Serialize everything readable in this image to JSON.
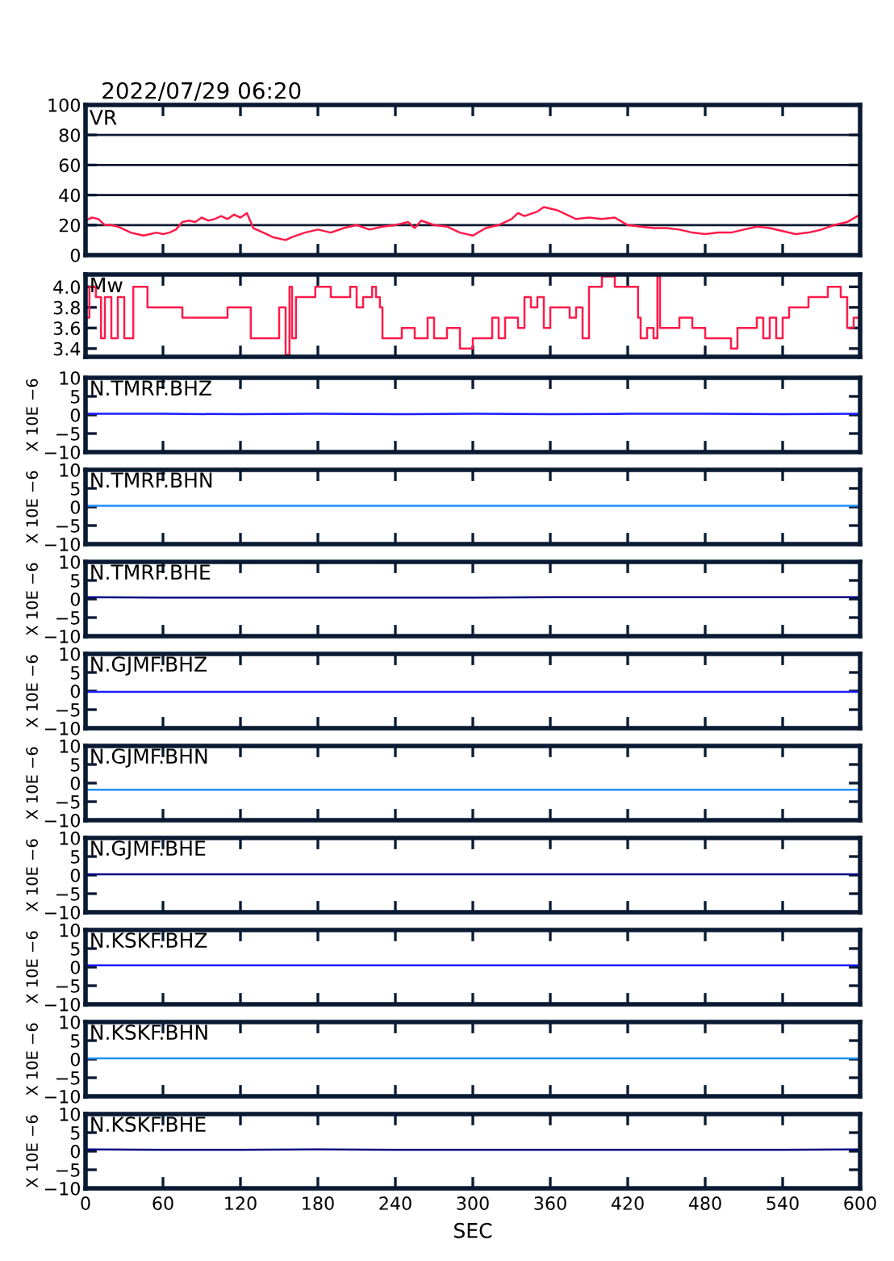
{
  "chart_data": [
    {
      "type": "line",
      "annotations": [
        "2022/07/29 06:20"
      ],
      "title": "VR",
      "x": [
        0,
        5,
        10,
        15,
        20,
        25,
        30,
        35,
        40,
        45,
        50,
        55,
        60,
        65,
        70,
        75,
        80,
        85,
        90,
        95,
        100,
        105,
        110,
        115,
        120,
        125,
        128,
        130,
        135,
        140,
        145,
        155,
        160,
        170,
        180,
        190,
        200,
        210,
        220,
        230,
        240,
        250,
        255,
        260,
        270,
        280,
        290,
        300,
        310,
        320,
        330,
        335,
        340,
        350,
        355,
        365,
        370,
        380,
        390,
        400,
        410,
        420,
        430,
        440,
        450,
        460,
        470,
        480,
        490,
        500,
        510,
        520,
        530,
        540,
        550,
        560,
        570,
        580,
        590,
        600
      ],
      "series": [
        {
          "color": "#ff1a4a",
          "values": [
            23,
            25,
            24,
            20,
            20,
            19,
            17,
            15,
            14,
            13,
            14,
            15,
            14,
            15,
            17,
            22,
            23,
            22,
            25,
            23,
            24,
            26,
            24,
            27,
            25,
            28,
            22,
            18,
            16,
            14,
            12,
            10,
            12,
            15,
            17,
            15,
            18,
            20,
            17,
            19,
            20,
            22,
            18,
            23,
            20,
            19,
            15,
            13,
            18,
            20,
            24,
            28,
            26,
            29,
            32,
            30,
            28,
            24,
            25,
            24,
            25,
            20,
            19,
            18,
            18,
            17,
            15,
            14,
            15,
            15,
            17,
            19,
            18,
            16,
            14,
            15,
            17,
            20,
            22,
            27
          ]
        }
      ],
      "xlim": [
        0,
        600
      ],
      "xticks": [
        0,
        60,
        120,
        180,
        240,
        300,
        360,
        420,
        480,
        540,
        600
      ],
      "ylim": [
        0,
        100
      ],
      "yticks": [
        0,
        20,
        40,
        60,
        80,
        100
      ],
      "grid": "y",
      "tick_labels": "y"
    },
    {
      "type": "step",
      "title": "Mw",
      "x": [
        0,
        3,
        8,
        12,
        15,
        20,
        25,
        30,
        35,
        37,
        45,
        48,
        55,
        60,
        75,
        90,
        110,
        125,
        128,
        150,
        155,
        158,
        160,
        163,
        170,
        178,
        185,
        190,
        200,
        205,
        210,
        215,
        222,
        225,
        228,
        230,
        240,
        245,
        255,
        265,
        270,
        280,
        290,
        300,
        310,
        315,
        320,
        325,
        335,
        340,
        345,
        350,
        355,
        360,
        370,
        375,
        380,
        385,
        390,
        400,
        405,
        410,
        420,
        425,
        428,
        430,
        435,
        440,
        443,
        445,
        455,
        460,
        470,
        480,
        495,
        500,
        505,
        515,
        520,
        525,
        530,
        535,
        540,
        545,
        550,
        560,
        570,
        575,
        580,
        585,
        590,
        595,
        600
      ],
      "series": [
        {
          "color": "#ff1a4a",
          "values": [
            3.7,
            4.0,
            3.9,
            3.5,
            3.9,
            3.5,
            3.9,
            3.5,
            3.5,
            4.0,
            4.0,
            3.8,
            3.8,
            3.8,
            3.7,
            3.7,
            3.8,
            3.8,
            3.5,
            3.8,
            3.34,
            4.0,
            3.5,
            3.9,
            3.9,
            4.0,
            4.0,
            3.9,
            3.9,
            4.0,
            3.8,
            3.9,
            4.0,
            3.9,
            3.8,
            3.5,
            3.5,
            3.6,
            3.5,
            3.7,
            3.5,
            3.6,
            3.4,
            3.5,
            3.5,
            3.7,
            3.5,
            3.7,
            3.6,
            3.9,
            3.8,
            3.9,
            3.6,
            3.8,
            3.8,
            3.7,
            3.8,
            3.5,
            4.0,
            4.1,
            4.1,
            4.0,
            4.0,
            4.0,
            3.7,
            3.5,
            3.6,
            3.5,
            4.1,
            3.6,
            3.6,
            3.7,
            3.6,
            3.5,
            3.5,
            3.4,
            3.6,
            3.6,
            3.7,
            3.5,
            3.7,
            3.5,
            3.7,
            3.8,
            3.8,
            3.9,
            3.9,
            4.0,
            4.0,
            3.9,
            3.6,
            3.7,
            3.6
          ]
        }
      ],
      "xlim": [
        0,
        600
      ],
      "xticks": [
        0,
        60,
        120,
        180,
        240,
        300,
        360,
        420,
        480,
        540,
        600
      ],
      "ylim": [
        3.32,
        4.12
      ],
      "yticks": [
        3.4,
        3.6,
        3.8,
        {
          "value": 4.0,
          "label": "4.0"
        }
      ],
      "tick_labels": "y"
    },
    {
      "type": "line",
      "title": "N.TMRF.BHZ",
      "ylabel": "X 10E −6",
      "x": [
        0,
        60,
        120,
        180,
        240,
        300,
        360,
        420,
        480,
        540,
        600
      ],
      "series": [
        {
          "color": "#1a1aff",
          "values": [
            0.3,
            0.3,
            0.2,
            0.3,
            0.2,
            0.3,
            0.2,
            0.3,
            0.3,
            0.2,
            0.3
          ]
        }
      ],
      "xlim": [
        0,
        600
      ],
      "xticks": [
        0,
        60,
        120,
        180,
        240,
        300,
        360,
        420,
        480,
        540,
        600
      ],
      "ylim": [
        -10,
        10
      ],
      "yticks": [
        {
          "value": -10,
          "label": "−10"
        },
        {
          "value": -5,
          "label": "−5"
        },
        0,
        5,
        10
      ],
      "tick_labels": "y"
    },
    {
      "type": "line",
      "title": "N.TMRF.BHN",
      "ylabel": "X 10E −6",
      "x": [
        0,
        60,
        120,
        180,
        240,
        300,
        360,
        420,
        480,
        540,
        600
      ],
      "series": [
        {
          "color": "#1e8fff",
          "values": [
            0.3,
            0.3,
            0.3,
            0.3,
            0.3,
            0.3,
            0.3,
            0.3,
            0.3,
            0.3,
            0.3
          ]
        }
      ],
      "xlim": [
        0,
        600
      ],
      "xticks": [
        0,
        60,
        120,
        180,
        240,
        300,
        360,
        420,
        480,
        540,
        600
      ],
      "ylim": [
        -10,
        10
      ],
      "yticks": [
        {
          "value": -10,
          "label": "−10"
        },
        {
          "value": -5,
          "label": "−5"
        },
        0,
        5,
        10
      ],
      "tick_labels": "y"
    },
    {
      "type": "line",
      "title": "N.TMRF.BHE",
      "ylabel": "X 10E −6",
      "x": [
        0,
        60,
        120,
        180,
        240,
        300,
        360,
        420,
        480,
        540,
        600
      ],
      "series": [
        {
          "color": "#000080",
          "values": [
            0.5,
            0.4,
            0.4,
            0.4,
            0.4,
            0.4,
            0.5,
            0.5,
            0.5,
            0.5,
            0.5
          ]
        }
      ],
      "xlim": [
        0,
        600
      ],
      "xticks": [
        0,
        60,
        120,
        180,
        240,
        300,
        360,
        420,
        480,
        540,
        600
      ],
      "ylim": [
        -10,
        10
      ],
      "yticks": [
        {
          "value": -10,
          "label": "−10"
        },
        {
          "value": -5,
          "label": "−5"
        },
        0,
        5,
        10
      ],
      "tick_labels": "y"
    },
    {
      "type": "line",
      "title": "N.GJMF.BHZ",
      "ylabel": "X 10E −6",
      "x": [
        0,
        60,
        120,
        180,
        240,
        300,
        360,
        420,
        480,
        540,
        600
      ],
      "series": [
        {
          "color": "#1a1aff",
          "values": [
            -0.2,
            -0.2,
            -0.2,
            -0.2,
            -0.2,
            -0.2,
            -0.2,
            -0.2,
            -0.2,
            -0.2,
            -0.2
          ]
        }
      ],
      "xlim": [
        0,
        600
      ],
      "xticks": [
        0,
        60,
        120,
        180,
        240,
        300,
        360,
        420,
        480,
        540,
        600
      ],
      "ylim": [
        -10,
        10
      ],
      "yticks": [
        {
          "value": -10,
          "label": "−10"
        },
        {
          "value": -5,
          "label": "−5"
        },
        0,
        5,
        10
      ],
      "tick_labels": "y"
    },
    {
      "type": "line",
      "title": "N.GJMF.BHN",
      "ylabel": "X 10E −6",
      "x": [
        0,
        60,
        120,
        180,
        240,
        300,
        360,
        420,
        480,
        540,
        600
      ],
      "series": [
        {
          "color": "#1e8fff",
          "values": [
            -1.8,
            -1.8,
            -1.8,
            -1.8,
            -1.8,
            -1.8,
            -1.8,
            -1.8,
            -1.8,
            -1.8,
            -1.8
          ]
        }
      ],
      "xlim": [
        0,
        600
      ],
      "xticks": [
        0,
        60,
        120,
        180,
        240,
        300,
        360,
        420,
        480,
        540,
        600
      ],
      "ylim": [
        -10,
        10
      ],
      "yticks": [
        {
          "value": -10,
          "label": "−10"
        },
        {
          "value": -5,
          "label": "−5"
        },
        0,
        5,
        10
      ],
      "tick_labels": "y"
    },
    {
      "type": "line",
      "title": "N.GJMF.BHE",
      "ylabel": "X 10E −6",
      "x": [
        0,
        60,
        120,
        180,
        240,
        300,
        360,
        420,
        480,
        540,
        600
      ],
      "series": [
        {
          "color": "#000080",
          "values": [
            0.2,
            0.2,
            0.2,
            0.2,
            0.2,
            0.2,
            0.2,
            0.2,
            0.2,
            0.2,
            0.2
          ]
        }
      ],
      "xlim": [
        0,
        600
      ],
      "xticks": [
        0,
        60,
        120,
        180,
        240,
        300,
        360,
        420,
        480,
        540,
        600
      ],
      "ylim": [
        -10,
        10
      ],
      "yticks": [
        {
          "value": -10,
          "label": "−10"
        },
        {
          "value": -5,
          "label": "−5"
        },
        0,
        5,
        10
      ],
      "tick_labels": "y"
    },
    {
      "type": "line",
      "title": "N.KSKF.BHZ",
      "ylabel": "X 10E −6",
      "x": [
        0,
        60,
        120,
        180,
        240,
        300,
        360,
        420,
        480,
        540,
        600
      ],
      "series": [
        {
          "color": "#1a1aff",
          "values": [
            0.5,
            0.5,
            0.5,
            0.5,
            0.5,
            0.5,
            0.5,
            0.5,
            0.5,
            0.5,
            0.5
          ]
        }
      ],
      "xlim": [
        0,
        600
      ],
      "xticks": [
        0,
        60,
        120,
        180,
        240,
        300,
        360,
        420,
        480,
        540,
        600
      ],
      "ylim": [
        -10,
        10
      ],
      "yticks": [
        {
          "value": -10,
          "label": "−10"
        },
        {
          "value": -5,
          "label": "−5"
        },
        0,
        5,
        10
      ],
      "tick_labels": "y"
    },
    {
      "type": "line",
      "title": "N.KSKF.BHN",
      "ylabel": "X 10E −6",
      "x": [
        0,
        60,
        120,
        180,
        240,
        300,
        360,
        420,
        480,
        540,
        600
      ],
      "series": [
        {
          "color": "#1e8fff",
          "values": [
            0.2,
            0.2,
            0.2,
            0.2,
            0.2,
            0.2,
            0.2,
            0.2,
            0.2,
            0.2,
            0.2
          ]
        }
      ],
      "xlim": [
        0,
        600
      ],
      "xticks": [
        0,
        60,
        120,
        180,
        240,
        300,
        360,
        420,
        480,
        540,
        600
      ],
      "ylim": [
        -10,
        10
      ],
      "yticks": [
        {
          "value": -10,
          "label": "−10"
        },
        {
          "value": -5,
          "label": "−5"
        },
        0,
        5,
        10
      ],
      "tick_labels": "y"
    },
    {
      "type": "line",
      "title": "N.KSKF.BHE",
      "ylabel": "X 10E −6",
      "xlabel": "SEC",
      "x": [
        0,
        60,
        120,
        180,
        240,
        300,
        360,
        420,
        480,
        540,
        600
      ],
      "series": [
        {
          "color": "#000080",
          "values": [
            0.5,
            0.4,
            0.4,
            0.5,
            0.4,
            0.4,
            0.4,
            0.4,
            0.4,
            0.4,
            0.5
          ]
        }
      ],
      "xlim": [
        0,
        600
      ],
      "xticks": [
        0,
        60,
        120,
        180,
        240,
        300,
        360,
        420,
        480,
        540,
        600
      ],
      "ylim": [
        -10,
        10
      ],
      "yticks": [
        {
          "value": -10,
          "label": "−10"
        },
        {
          "value": -5,
          "label": "−5"
        },
        0,
        5,
        10
      ]
    }
  ]
}
